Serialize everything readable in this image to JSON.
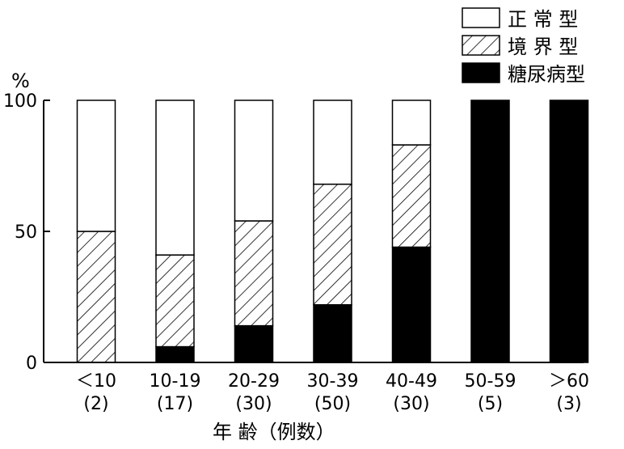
{
  "chart_data": {
    "type": "bar",
    "stacked": true,
    "percent_stacked": true,
    "ylabel": "%",
    "xlabel": "年 齢（例数）",
    "yticks": [
      0,
      50,
      100
    ],
    "ylim": [
      0,
      100
    ],
    "grid": false,
    "legend_position": "top-right",
    "categories": [
      "＜10",
      "10-19",
      "20-29",
      "30-39",
      "40-49",
      "50-59",
      "＞60"
    ],
    "counts": [
      "(2)",
      "(17)",
      "(30)",
      "(50)",
      "(30)",
      "(5)",
      "(3)"
    ],
    "series": [
      {
        "name": "糖尿病型",
        "key": "diabetic",
        "fill": "#000000",
        "values": [
          0,
          6,
          14,
          22,
          44,
          100,
          100
        ]
      },
      {
        "name": "境界型",
        "key": "borderline",
        "fill": "hatch",
        "values": [
          50,
          35,
          40,
          46,
          39,
          0,
          0
        ]
      },
      {
        "name": "正常型",
        "key": "normal",
        "fill": "#ffffff",
        "values": [
          50,
          59,
          46,
          32,
          17,
          0,
          0
        ]
      }
    ],
    "legend": [
      {
        "key": "normal",
        "label": "正 常 型"
      },
      {
        "key": "borderline",
        "label": "境 界 型"
      },
      {
        "key": "diabetic",
        "label": "糖尿病型"
      }
    ]
  }
}
